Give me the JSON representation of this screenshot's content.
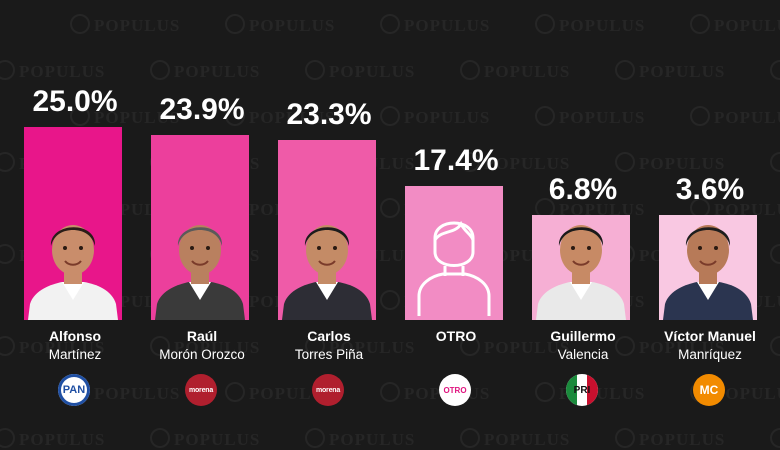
{
  "watermark": "POPULUS",
  "chart_data": {
    "type": "bar",
    "categories": [
      "Alfonso Martínez",
      "Raúl Morón Orozco",
      "Carlos Torres Piña",
      "OTRO",
      "Guillermo Valencia",
      "Víctor Manuel Manríquez"
    ],
    "values": [
      25.0,
      23.9,
      23.3,
      17.4,
      6.8,
      3.6
    ],
    "ylim": [
      0,
      25
    ],
    "grid": false,
    "legend": "none",
    "candidates": [
      {
        "first": "Alfonso",
        "last": "Martínez",
        "value": 25.0,
        "label": "25.0%",
        "party": "PAN",
        "bar_color": "#e8168a",
        "icon": "candidate-photo-icon"
      },
      {
        "first": "Raúl",
        "last": "Morón Orozco",
        "value": 23.9,
        "label": "23.9%",
        "party": "morena",
        "bar_color": "#ec3f9c",
        "icon": "candidate-photo-icon"
      },
      {
        "first": "Carlos",
        "last": "Torres Piña",
        "value": 23.3,
        "label": "23.3%",
        "party": "morena",
        "bar_color": "#ef5ba8",
        "icon": "candidate-photo-icon"
      },
      {
        "first": "OTRO",
        "last": "",
        "value": 17.4,
        "label": "17.4%",
        "party": "OTRO",
        "bar_color": "#f28cc4",
        "icon": "generic-person-outline-icon"
      },
      {
        "first": "Guillermo",
        "last": "Valencia",
        "value": 6.8,
        "label": "6.8%",
        "party": "PRI",
        "bar_color": "#f6afd4",
        "icon": "candidate-photo-icon"
      },
      {
        "first": "Víctor Manuel",
        "last": "Manríquez",
        "value": 3.6,
        "label": "3.6%",
        "party": "MC",
        "bar_color": "#f9c8e2",
        "icon": "candidate-photo-icon"
      }
    ]
  }
}
